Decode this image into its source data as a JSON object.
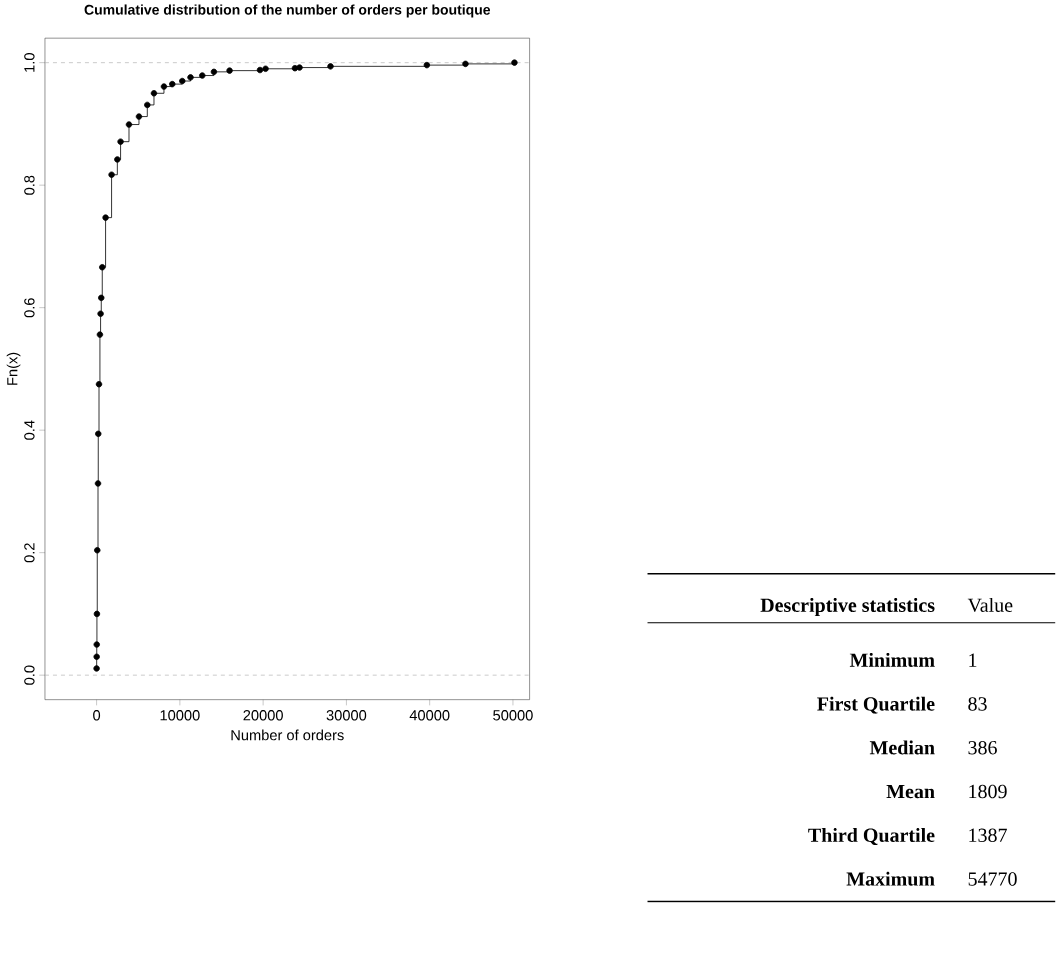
{
  "chart_data": [
    {
      "type": "step",
      "title": "Cumulative distribution of the number of orders per boutique",
      "xlabel": "Number of orders",
      "ylabel": "Fn(x)",
      "x": [
        1,
        10,
        20,
        40,
        80,
        170,
        200,
        290,
        400,
        480,
        560,
        680,
        1080,
        1800,
        2490,
        2880,
        3890,
        5090,
        6090,
        6890,
        8090,
        9090,
        10290,
        11280,
        12690,
        14090,
        15970,
        19620,
        20290,
        23820,
        24370,
        28090,
        39660,
        44300,
        50180
      ],
      "series": [
        {
          "color": "#000000",
          "values": [
            0.011,
            0.03,
            0.05,
            0.1,
            0.204,
            0.313,
            0.394,
            0.475,
            0.556,
            0.59,
            0.616,
            0.666,
            0.747,
            0.817,
            0.842,
            0.871,
            0.899,
            0.912,
            0.931,
            0.95,
            0.961,
            0.965,
            0.97,
            0.976,
            0.979,
            0.985,
            0.987,
            0.988,
            0.99,
            0.991,
            0.992,
            0.994,
            0.996,
            0.998,
            1.0
          ]
        }
      ],
      "marker": "circle",
      "xlim": [
        -6200,
        52000
      ],
      "ylim": [
        -0.04,
        1.04
      ],
      "xticks": [
        0,
        10000,
        20000,
        30000,
        40000,
        50000
      ],
      "yticks": [
        {
          "value": 0,
          "label": "0.0"
        },
        0.2,
        0.4,
        0.6,
        0.8,
        {
          "value": 1,
          "label": "1.0"
        }
      ],
      "ref_lines": [
        {
          "axis": "y",
          "value": 0,
          "color": "#b0b0b0",
          "line_style": "dashed"
        },
        {
          "axis": "y",
          "value": 1,
          "color": "#b0b0b0",
          "line_style": "dashed"
        }
      ]
    },
    {
      "type": "other",
      "annotations": [
        "Descriptive statistics",
        "Value"
      ],
      "categories": [
        "Minimum",
        "First Quartile",
        "Median",
        "Mean",
        "Third Quartile",
        "Maximum"
      ],
      "values": [
        1,
        83,
        386,
        1809,
        1387,
        54770
      ],
      "data_labels": true
    }
  ]
}
